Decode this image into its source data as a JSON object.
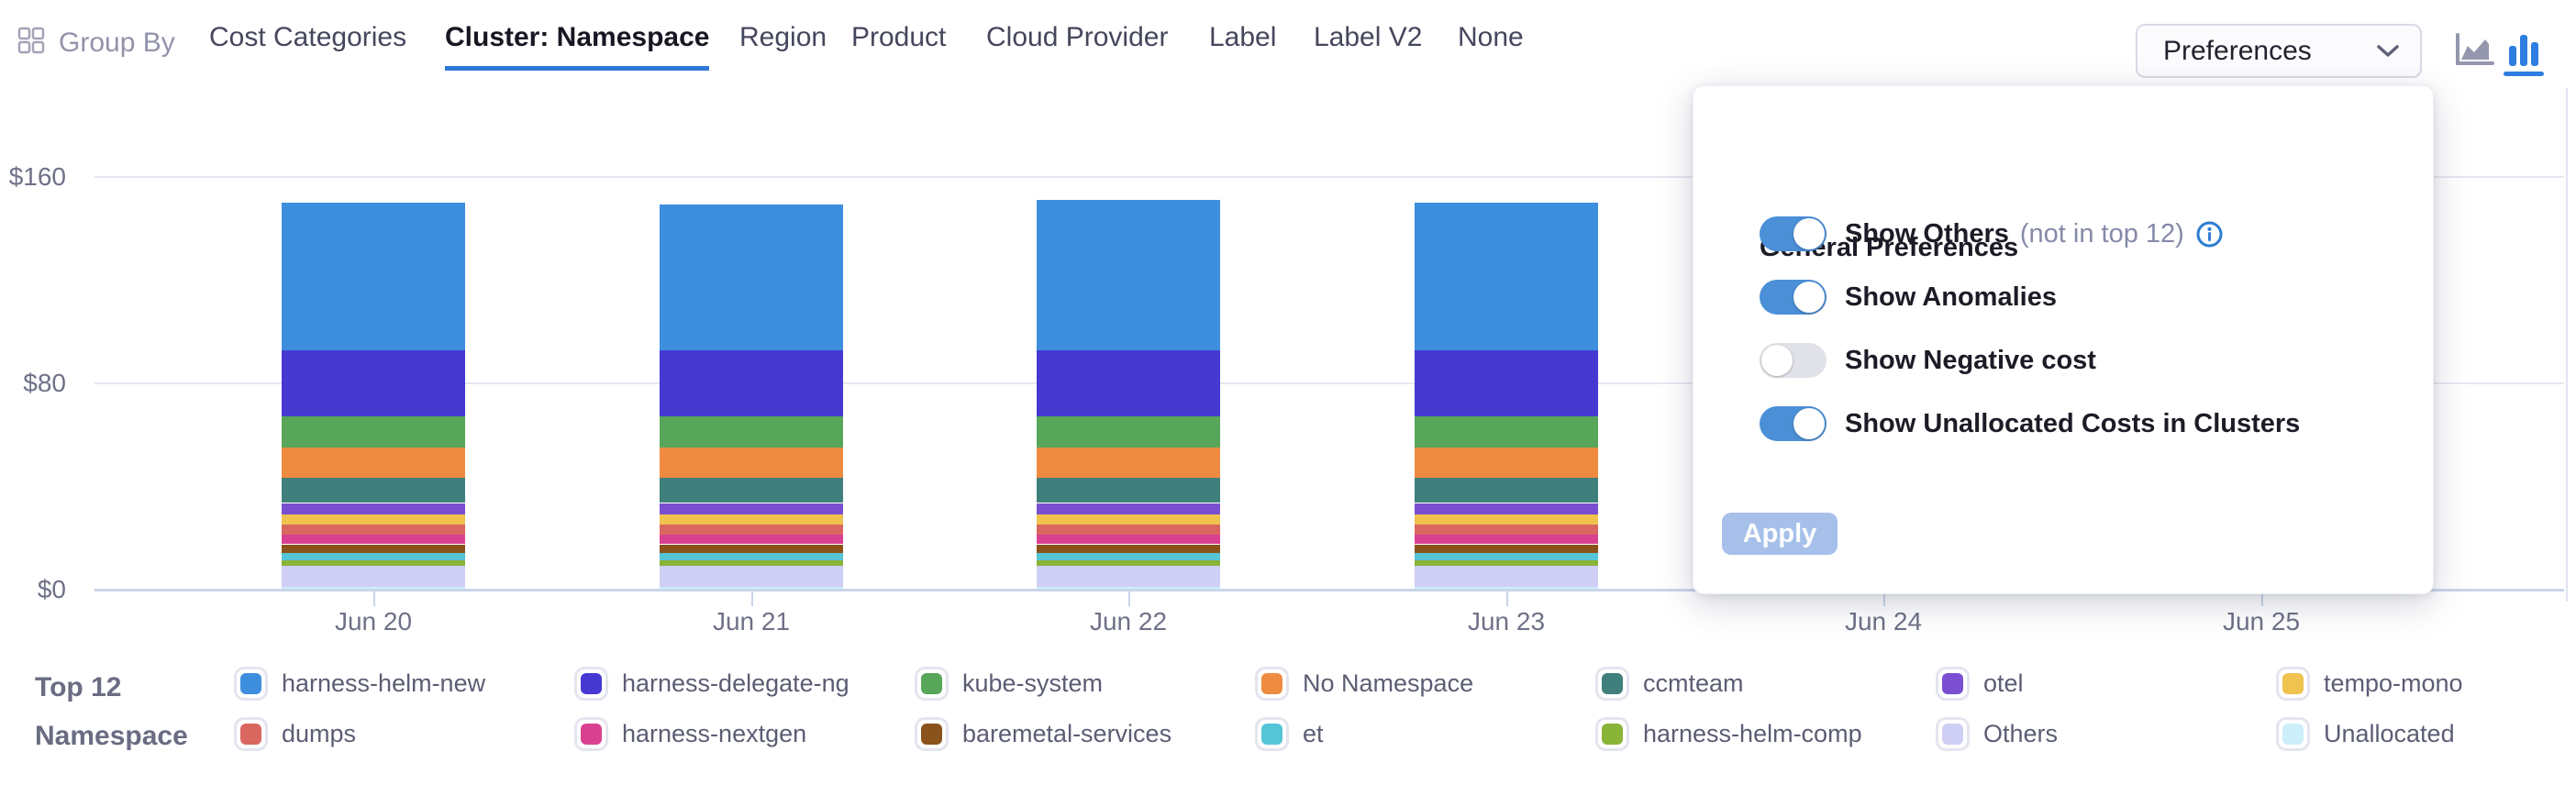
{
  "toolbar": {
    "group_by_label": "Group By",
    "tabs": [
      {
        "label": "Cost Categories",
        "selected": false
      },
      {
        "label": "Cluster: Namespace",
        "selected": true
      },
      {
        "label": "Region",
        "selected": false
      },
      {
        "label": "Product",
        "selected": false
      },
      {
        "label": "Cloud Provider",
        "selected": false
      },
      {
        "label": "Label",
        "selected": false
      },
      {
        "label": "Label V2",
        "selected": false
      },
      {
        "label": "None",
        "selected": false
      }
    ],
    "preferences_label": "Preferences",
    "chart_type_toggle": {
      "area_icon": "area-chart-icon",
      "bar_icon": "bar-chart-icon",
      "active": "bar"
    }
  },
  "preferences_panel": {
    "title": "General Preferences",
    "toggles": [
      {
        "label": "Show Others",
        "suffix": "(not in top 12)",
        "has_info_icon": true,
        "on": true
      },
      {
        "label": "Show Anomalies",
        "suffix": "",
        "has_info_icon": false,
        "on": true
      },
      {
        "label": "Show Negative cost",
        "suffix": "",
        "has_info_icon": false,
        "on": false
      },
      {
        "label": "Show Unallocated Costs in Clusters",
        "suffix": "",
        "has_info_icon": false,
        "on": true
      }
    ],
    "apply_label": "Apply"
  },
  "chart_data": {
    "type": "bar",
    "stacked": true,
    "title": "",
    "xlabel": "",
    "ylabel": "",
    "categories": [
      "Jun 20",
      "Jun 21",
      "Jun 22",
      "Jun 23",
      "Jun 24",
      "Jun 25"
    ],
    "bar_count": 4,
    "y_tick_labels": [
      "$0",
      "$80",
      "$160"
    ],
    "ylim": [
      0,
      160
    ],
    "grid": true,
    "legend_position": "bottom",
    "currency": "USD",
    "totals": [
      150.0,
      149.2,
      151.0,
      150.0
    ],
    "series_note": "series listed top-of-stack first; values are $ per day for Jun 20-23, no bars for Jun 24-25",
    "series": [
      {
        "name": "harness-helm-new",
        "color": "#3e8ede",
        "values": [
          57.2,
          56.4,
          58.2,
          57.2
        ]
      },
      {
        "name": "harness-delegate-ng",
        "color": "#4539d2",
        "values": [
          25.6,
          25.6,
          25.6,
          25.6
        ]
      },
      {
        "name": "kube-system",
        "color": "#57a65a",
        "values": [
          12.2,
          12.2,
          12.2,
          12.2
        ]
      },
      {
        "name": "No Namespace",
        "color": "#ee8b40",
        "values": [
          11.7,
          11.7,
          11.7,
          11.7
        ]
      },
      {
        "name": "ccmteam",
        "color": "#40807c",
        "values": [
          9.7,
          9.7,
          9.7,
          9.7
        ]
      },
      {
        "name": "otel",
        "color": "#7a4fd2",
        "values": [
          4.4,
          4.4,
          4.4,
          4.4
        ]
      },
      {
        "name": "tempo-mono",
        "color": "#f0c24e",
        "values": [
          3.9,
          3.9,
          3.9,
          3.9
        ]
      },
      {
        "name": "dumps",
        "color": "#da675f",
        "values": [
          4.1,
          4.1,
          4.1,
          4.1
        ]
      },
      {
        "name": "harness-nextgen",
        "color": "#d94190",
        "values": [
          3.6,
          3.6,
          3.6,
          3.6
        ]
      },
      {
        "name": "baremetal-services",
        "color": "#8a531b",
        "values": [
          3.2,
          3.2,
          3.2,
          3.2
        ]
      },
      {
        "name": "et",
        "color": "#55c4d6",
        "values": [
          3.0,
          3.0,
          3.0,
          3.0
        ]
      },
      {
        "name": "harness-helm-comp",
        "color": "#8ab438",
        "values": [
          2.1,
          2.1,
          2.1,
          2.1
        ]
      },
      {
        "name": "Others",
        "color": "#cfcef5",
        "values": [
          8.1,
          8.1,
          8.1,
          8.1
        ]
      },
      {
        "name": "Unallocated",
        "color": "#cdeefb",
        "values": [
          1.2,
          1.2,
          1.2,
          1.2
        ]
      }
    ]
  },
  "legend": {
    "title_line1": "Top 12",
    "title_line2": "Namespace",
    "items": [
      {
        "label": "harness-helm-new",
        "color": "#3e8ede"
      },
      {
        "label": "harness-delegate-ng",
        "color": "#4539d2"
      },
      {
        "label": "kube-system",
        "color": "#57a65a"
      },
      {
        "label": "No Namespace",
        "color": "#ee8b40"
      },
      {
        "label": "ccmteam",
        "color": "#40807c"
      },
      {
        "label": "otel",
        "color": "#7a4fd2"
      },
      {
        "label": "tempo-mono",
        "color": "#f0c24e"
      },
      {
        "label": "dumps",
        "color": "#da675f"
      },
      {
        "label": "harness-nextgen",
        "color": "#d94190"
      },
      {
        "label": "baremetal-services",
        "color": "#8a531b"
      },
      {
        "label": "et",
        "color": "#55c4d6"
      },
      {
        "label": "harness-helm-comp",
        "color": "#8ab438"
      },
      {
        "label": "Others",
        "color": "#cfcef5"
      },
      {
        "label": "Unallocated",
        "color": "#cdeefb"
      }
    ]
  },
  "colors": {
    "tab_underline": "#2e79d6",
    "toggle_on": "#4b8fd7",
    "toggle_off": "#e1e2e9",
    "apply_disabled": "#a6c0ea",
    "active_chart_icon": "#2d7ee0",
    "inactive_chart_icon": "#9597ae",
    "axis_text": "#6f7188",
    "gridline": "#e6e8f0",
    "axis_line": "#c9d5ea"
  }
}
